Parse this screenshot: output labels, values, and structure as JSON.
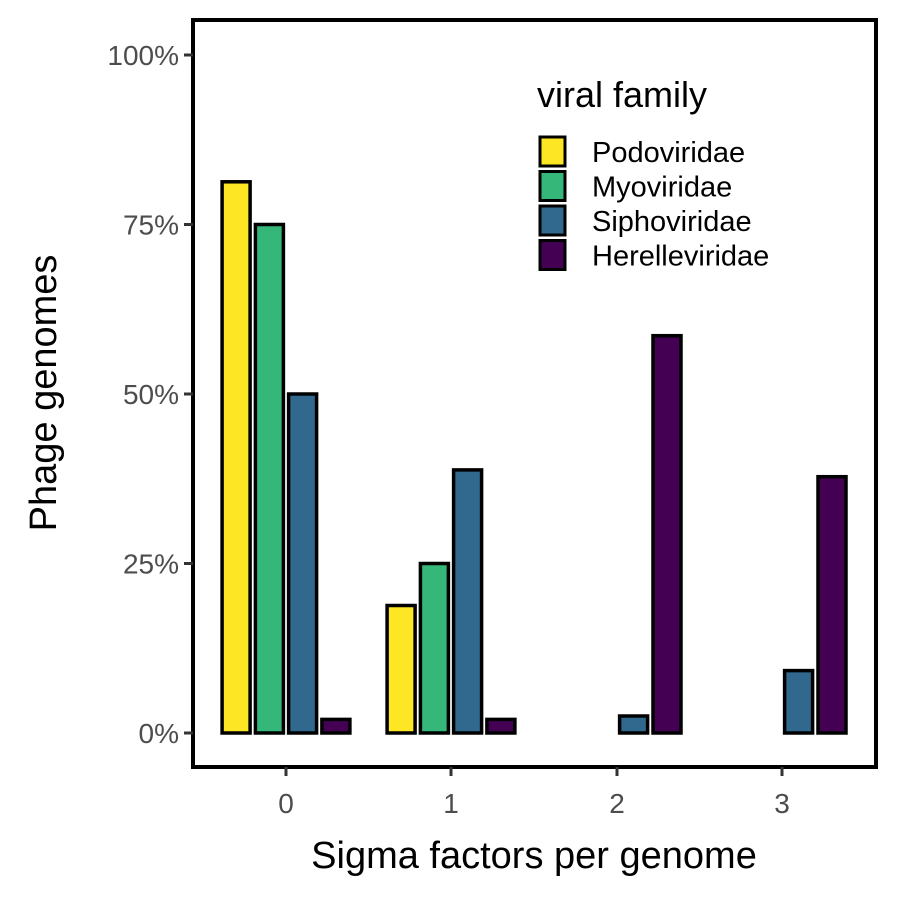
{
  "chart_data": {
    "type": "bar",
    "xlabel": "Sigma factors per genome",
    "ylabel": "Phage genomes",
    "categories": [
      "0",
      "1",
      "2",
      "3"
    ],
    "y_ticks": [
      0,
      25,
      50,
      75,
      100
    ],
    "y_tick_labels": [
      "0%",
      "25%",
      "50%",
      "75%",
      "100%"
    ],
    "ylim": [
      -4.5,
      104
    ],
    "grid": false,
    "legend": {
      "title": "viral family",
      "placement": "top-right-inside"
    },
    "series": [
      {
        "name": "Podoviridae",
        "color": "#FDE725",
        "values": [
          81.3,
          18.8,
          0,
          0
        ]
      },
      {
        "name": "Myoviridae",
        "color": "#35B779",
        "values": [
          75.0,
          25.0,
          0,
          0
        ]
      },
      {
        "name": "Siphoviridae",
        "color": "#31688E",
        "values": [
          50.0,
          38.8,
          2.5,
          9.2
        ]
      },
      {
        "name": "Herelleviridae",
        "color": "#440154",
        "values": [
          2.0,
          2.0,
          58.6,
          37.8
        ]
      }
    ]
  }
}
